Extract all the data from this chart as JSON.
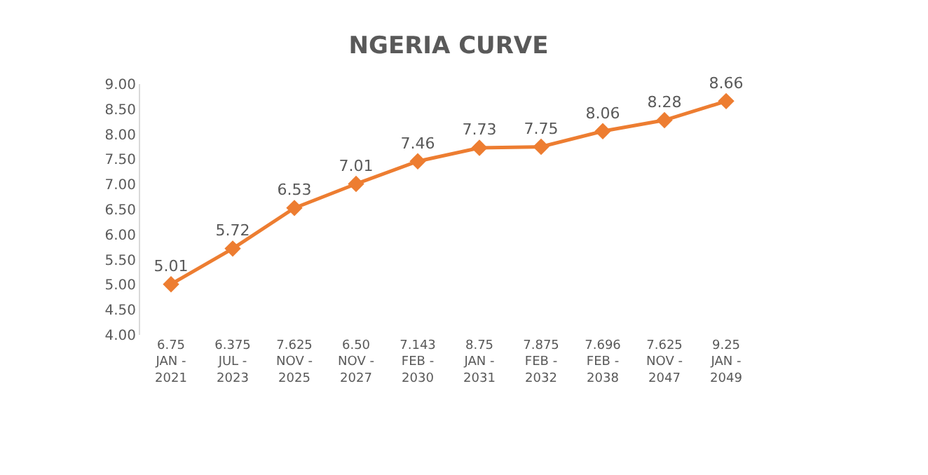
{
  "chart_data": {
    "type": "line",
    "title": "NGERIA CURVE",
    "categories": [
      "6.75 JAN - 2021",
      "6.375 JUL - 2023",
      "7.625 NOV - 2025",
      "6.50 NOV - 2027",
      "7.143 FEB - 2030",
      "8.75 JAN - 2031",
      "7.875 FEB - 2032",
      "7.696 FEB - 2038",
      "7.625 NOV - 2047",
      "9.25 JAN - 2049"
    ],
    "series": [
      {
        "color": "#ed7d31",
        "values": [
          5.01,
          5.72,
          6.53,
          7.01,
          7.46,
          7.73,
          7.75,
          8.06,
          8.28,
          8.66
        ]
      }
    ],
    "ylim": [
      4,
      9
    ],
    "yticks": [
      {
        "value": 4,
        "label": "4.00"
      },
      {
        "value": 4.5,
        "label": "4.50"
      },
      {
        "value": 5,
        "label": "5.00"
      },
      {
        "value": 5.5,
        "label": "5.50"
      },
      {
        "value": 6,
        "label": "6.00"
      },
      {
        "value": 6.5,
        "label": "6.50"
      },
      {
        "value": 7,
        "label": "7.00"
      },
      {
        "value": 7.5,
        "label": "7.50"
      },
      {
        "value": 8,
        "label": "8.00"
      },
      {
        "value": 8.5,
        "label": "8.50"
      },
      {
        "value": 9,
        "label": "9.00"
      }
    ],
    "data_labels": true,
    "marker": "diamond",
    "line_style": "solid"
  }
}
